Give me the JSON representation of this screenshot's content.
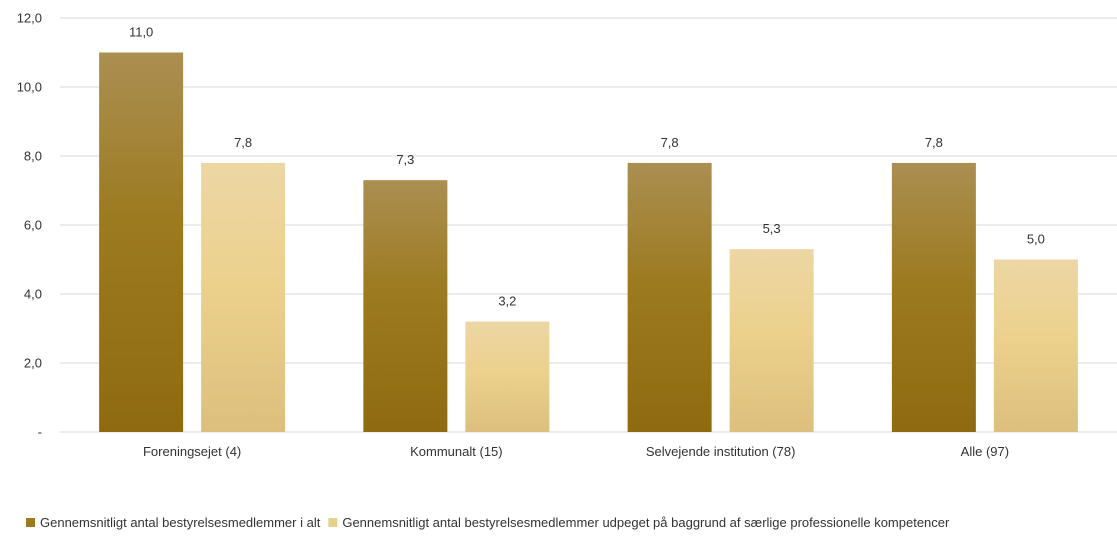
{
  "chart_data": {
    "type": "bar",
    "categories": [
      "Foreningsejet (4)",
      "Kommunalt (15)",
      "Selvejende institution (78)",
      "Alle (97)"
    ],
    "series": [
      {
        "name": "Gennemsnitligt antal bestyrelsesmedlemmer i alt",
        "values": [
          11.0,
          7.3,
          7.8,
          7.8
        ],
        "labels": [
          "11,0",
          "7,3",
          "7,8",
          "7,8"
        ],
        "color": "#9c7a1f"
      },
      {
        "name": "Gennemsnitligt antal bestyrelsesmedlemmer udpeget på baggrund af særlige professionelle kompetencer",
        "values": [
          7.8,
          3.2,
          5.3,
          5.0
        ],
        "labels": [
          "7,8",
          "3,2",
          "5,3",
          "5,0"
        ],
        "color": "#e8d08c"
      }
    ],
    "ylim": [
      0,
      12
    ],
    "yticks": [
      0,
      2,
      4,
      6,
      8,
      10,
      12
    ],
    "ytick_labels": [
      "-",
      "2,0",
      "4,0",
      "6,0",
      "8,0",
      "10,0",
      "12,0"
    ],
    "grid": true,
    "legend": "bottom-left"
  }
}
